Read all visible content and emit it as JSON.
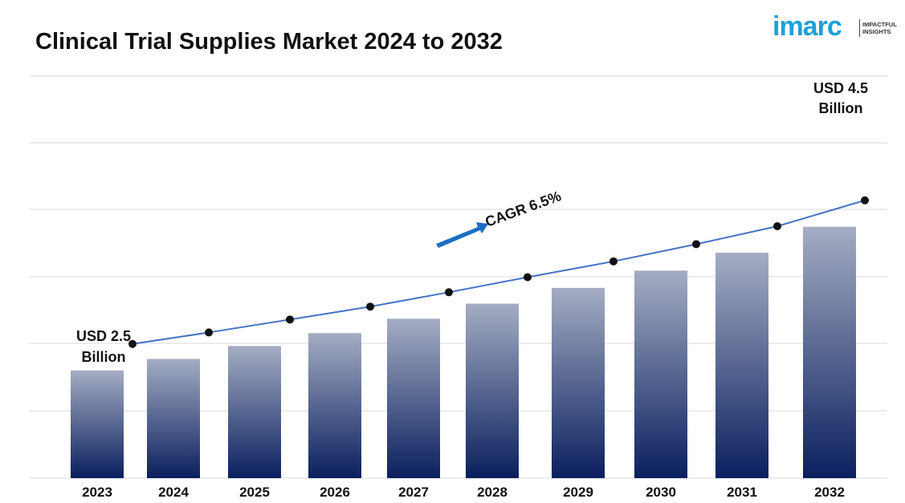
{
  "header": {
    "title": "Clinical Trial Supplies Market 2024 to 2032"
  },
  "logo": {
    "word": "imarc",
    "tagline_1": "IMPACTFUL",
    "tagline_2": "INSIGHTS"
  },
  "chart_data": {
    "type": "bar",
    "title": "Clinical Trial Supplies Market 2024 to 2032",
    "xlabel": "",
    "ylabel": "",
    "categories": [
      "2023",
      "2024",
      "2025",
      "2026",
      "2027",
      "2028",
      "2029",
      "2030",
      "2031",
      "2032"
    ],
    "values": [
      2.5,
      2.66,
      2.84,
      3.02,
      3.22,
      3.43,
      3.65,
      3.89,
      4.14,
      4.5
    ],
    "units": "USD Billion",
    "ylim": [
      0,
      5
    ],
    "grid": true,
    "trend_line": true,
    "annotations": {
      "start_line1": "USD 2.5",
      "start_line2": "Billion",
      "end_line1": "USD 4.5",
      "end_line2": "Billion",
      "cagr": "CAGR 6.5%"
    },
    "colors": {
      "bar_top": "#a4adc3",
      "bar_bottom": "#0a1f5e",
      "line": "#4472c4",
      "marker": "#111111",
      "arrow": "#1b6fc0",
      "grid": "#d9d9d9"
    }
  }
}
